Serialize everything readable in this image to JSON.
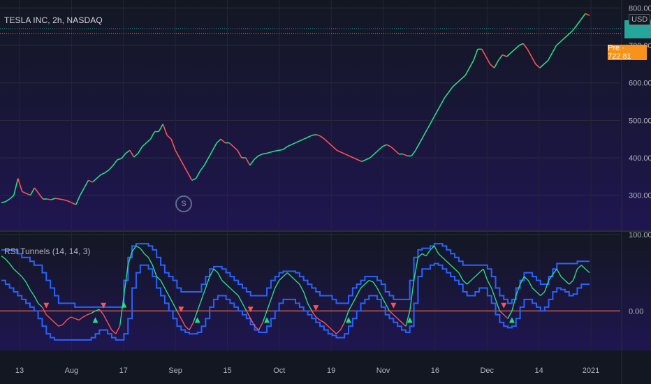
{
  "chart_title": "TESLA INC, 2h, NASDAQ",
  "currency": "USD",
  "last_price_tag": "",
  "pre_market_tag": "Pre · 722.81",
  "session_marker": "S",
  "indicator_title": "RSI Tunnels (14, 14, 3)",
  "colors": {
    "background_top": "#131722",
    "background_bottom": "#1f1650",
    "up": "#26de81",
    "down": "#ff5252",
    "tunnel": "#2962ff",
    "tunnel_fill": "#1e3a8a",
    "hline": "#ff7043",
    "price_line": "#26a69a",
    "pre_line": "#f7931a"
  },
  "chart_data": [
    {
      "type": "line",
      "title": "TESLA INC, 2h, NASDAQ",
      "ylabel": "USD",
      "ylim": [
        210,
        810
      ],
      "y_ticks": [
        "800.00",
        "700.00",
        "600.00",
        "500.00",
        "400.00",
        "300.00"
      ],
      "y_tick_values": [
        800,
        700,
        600,
        500,
        400,
        300
      ],
      "x_ticks": [
        "13",
        "Aug",
        "17",
        "Sep",
        "15",
        "Oct",
        "19",
        "Nov",
        "16",
        "Dec",
        "14",
        "2021"
      ],
      "series": [
        {
          "values": [
            280,
            283,
            290,
            300,
            345,
            310,
            305,
            300,
            320,
            305,
            290,
            290,
            288,
            292,
            290,
            288,
            285,
            280,
            275,
            300,
            320,
            340,
            335,
            345,
            355,
            360,
            368,
            380,
            395,
            398,
            412,
            420,
            402,
            412,
            430,
            440,
            450,
            470,
            470,
            490,
            460,
            450,
            420,
            400,
            380,
            360,
            340,
            345,
            365,
            380,
            400,
            420,
            440,
            450,
            440,
            440,
            430,
            420,
            400,
            400,
            380,
            395,
            405,
            410,
            412,
            415,
            418,
            420,
            422,
            430,
            435,
            440,
            445,
            450,
            455,
            460,
            462,
            458,
            450,
            440,
            430,
            420,
            415,
            410,
            405,
            400,
            395,
            390,
            395,
            400,
            410,
            420,
            430,
            435,
            430,
            420,
            410,
            410,
            405,
            405,
            420,
            440,
            460,
            480,
            500,
            520,
            540,
            560,
            575,
            590,
            600,
            610,
            620,
            640,
            660,
            690,
            690,
            670,
            650,
            640,
            660,
            675,
            670,
            680,
            690,
            700,
            705,
            690,
            670,
            650,
            640,
            650,
            660,
            680,
            700,
            710,
            720,
            730,
            740,
            755,
            770,
            785,
            780
          ]
        }
      ]
    },
    {
      "type": "line",
      "title": "RSI Tunnels (14, 14, 3)",
      "ylim": [
        -50,
        100
      ],
      "y_ticks": [
        "100.00",
        "0.00"
      ],
      "y_tick_values": [
        100,
        0
      ],
      "series": [
        {
          "values": [
            72,
            68,
            62,
            55,
            50,
            45,
            38,
            28,
            20,
            10,
            5,
            -5,
            -10,
            -15,
            -20,
            -18,
            -12,
            -8,
            -10,
            -12,
            -8,
            -5,
            -3,
            0,
            2,
            -5,
            -15,
            -25,
            -30,
            -20,
            20,
            60,
            78,
            85,
            82,
            75,
            70,
            60,
            45,
            40,
            30,
            20,
            10,
            0,
            -10,
            -20,
            -25,
            -15,
            0,
            15,
            30,
            45,
            55,
            50,
            40,
            35,
            30,
            25,
            20,
            10,
            0,
            -10,
            -20,
            -25,
            -15,
            0,
            15,
            30,
            40,
            45,
            50,
            45,
            40,
            35,
            25,
            10,
            0,
            -8,
            -12,
            -15,
            -20,
            -25,
            -30,
            -25,
            -15,
            0,
            10,
            20,
            30,
            35,
            40,
            38,
            30,
            20,
            10,
            0,
            -5,
            -10,
            -15,
            -20,
            0,
            40,
            70,
            75,
            72,
            80,
            85,
            75,
            70,
            65,
            60,
            55,
            50,
            40,
            35,
            40,
            45,
            50,
            55,
            40,
            30,
            15,
            0,
            -5,
            -10,
            0,
            20,
            35,
            45,
            40,
            30,
            25,
            20,
            25,
            40,
            48,
            55,
            45,
            40,
            35,
            40,
            55,
            60,
            55,
            50
          ]
        },
        {
          "values": [
            80,
            80,
            80,
            80,
            75,
            70,
            70,
            65,
            60,
            60,
            50,
            40,
            30,
            20,
            10,
            10,
            10,
            10,
            5,
            5,
            5,
            5,
            5,
            5,
            5,
            5,
            5,
            5,
            5,
            5,
            40,
            70,
            85,
            88,
            88,
            88,
            85,
            80,
            70,
            60,
            50,
            45,
            40,
            30,
            25,
            25,
            25,
            25,
            25,
            35,
            45,
            55,
            58,
            58,
            55,
            50,
            45,
            40,
            35,
            30,
            25,
            20,
            20,
            20,
            20,
            30,
            40,
            45,
            50,
            52,
            52,
            52,
            50,
            45,
            40,
            35,
            30,
            25,
            20,
            20,
            20,
            15,
            10,
            10,
            10,
            20,
            30,
            35,
            40,
            45,
            45,
            45,
            40,
            35,
            25,
            20,
            15,
            15,
            15,
            15,
            40,
            70,
            80,
            82,
            82,
            85,
            88,
            88,
            85,
            80,
            75,
            70,
            65,
            60,
            60,
            60,
            60,
            60,
            60,
            55,
            45,
            30,
            20,
            15,
            10,
            15,
            30,
            40,
            50,
            50,
            45,
            40,
            35,
            35,
            45,
            55,
            62,
            62,
            62,
            62,
            62,
            65,
            65,
            65,
            65
          ]
        },
        {
          "values": [
            40,
            35,
            30,
            25,
            20,
            15,
            10,
            5,
            0,
            -10,
            -20,
            -30,
            -35,
            -38,
            -38,
            -38,
            -38,
            -38,
            -38,
            -38,
            -38,
            -38,
            -35,
            -30,
            -25,
            -25,
            -30,
            -35,
            -38,
            -38,
            -30,
            -10,
            30,
            50,
            60,
            60,
            55,
            45,
            30,
            20,
            10,
            0,
            -10,
            -20,
            -25,
            -28,
            -30,
            -30,
            -28,
            -20,
            -10,
            5,
            15,
            20,
            20,
            15,
            10,
            5,
            0,
            -5,
            -10,
            -18,
            -25,
            -28,
            -28,
            -20,
            -10,
            0,
            10,
            15,
            15,
            15,
            10,
            5,
            0,
            -5,
            -10,
            -15,
            -20,
            -25,
            -30,
            -32,
            -35,
            -35,
            -30,
            -20,
            -10,
            0,
            10,
            15,
            20,
            20,
            15,
            5,
            -5,
            -10,
            -15,
            -20,
            -25,
            -28,
            -20,
            10,
            45,
            55,
            55,
            60,
            62,
            60,
            55,
            50,
            45,
            40,
            35,
            25,
            20,
            20,
            25,
            30,
            30,
            20,
            10,
            -5,
            -15,
            -20,
            -22,
            -20,
            -10,
            5,
            15,
            15,
            10,
            5,
            0,
            5,
            15,
            25,
            30,
            28,
            25,
            20,
            22,
            30,
            35,
            35,
            35
          ]
        }
      ]
    }
  ]
}
